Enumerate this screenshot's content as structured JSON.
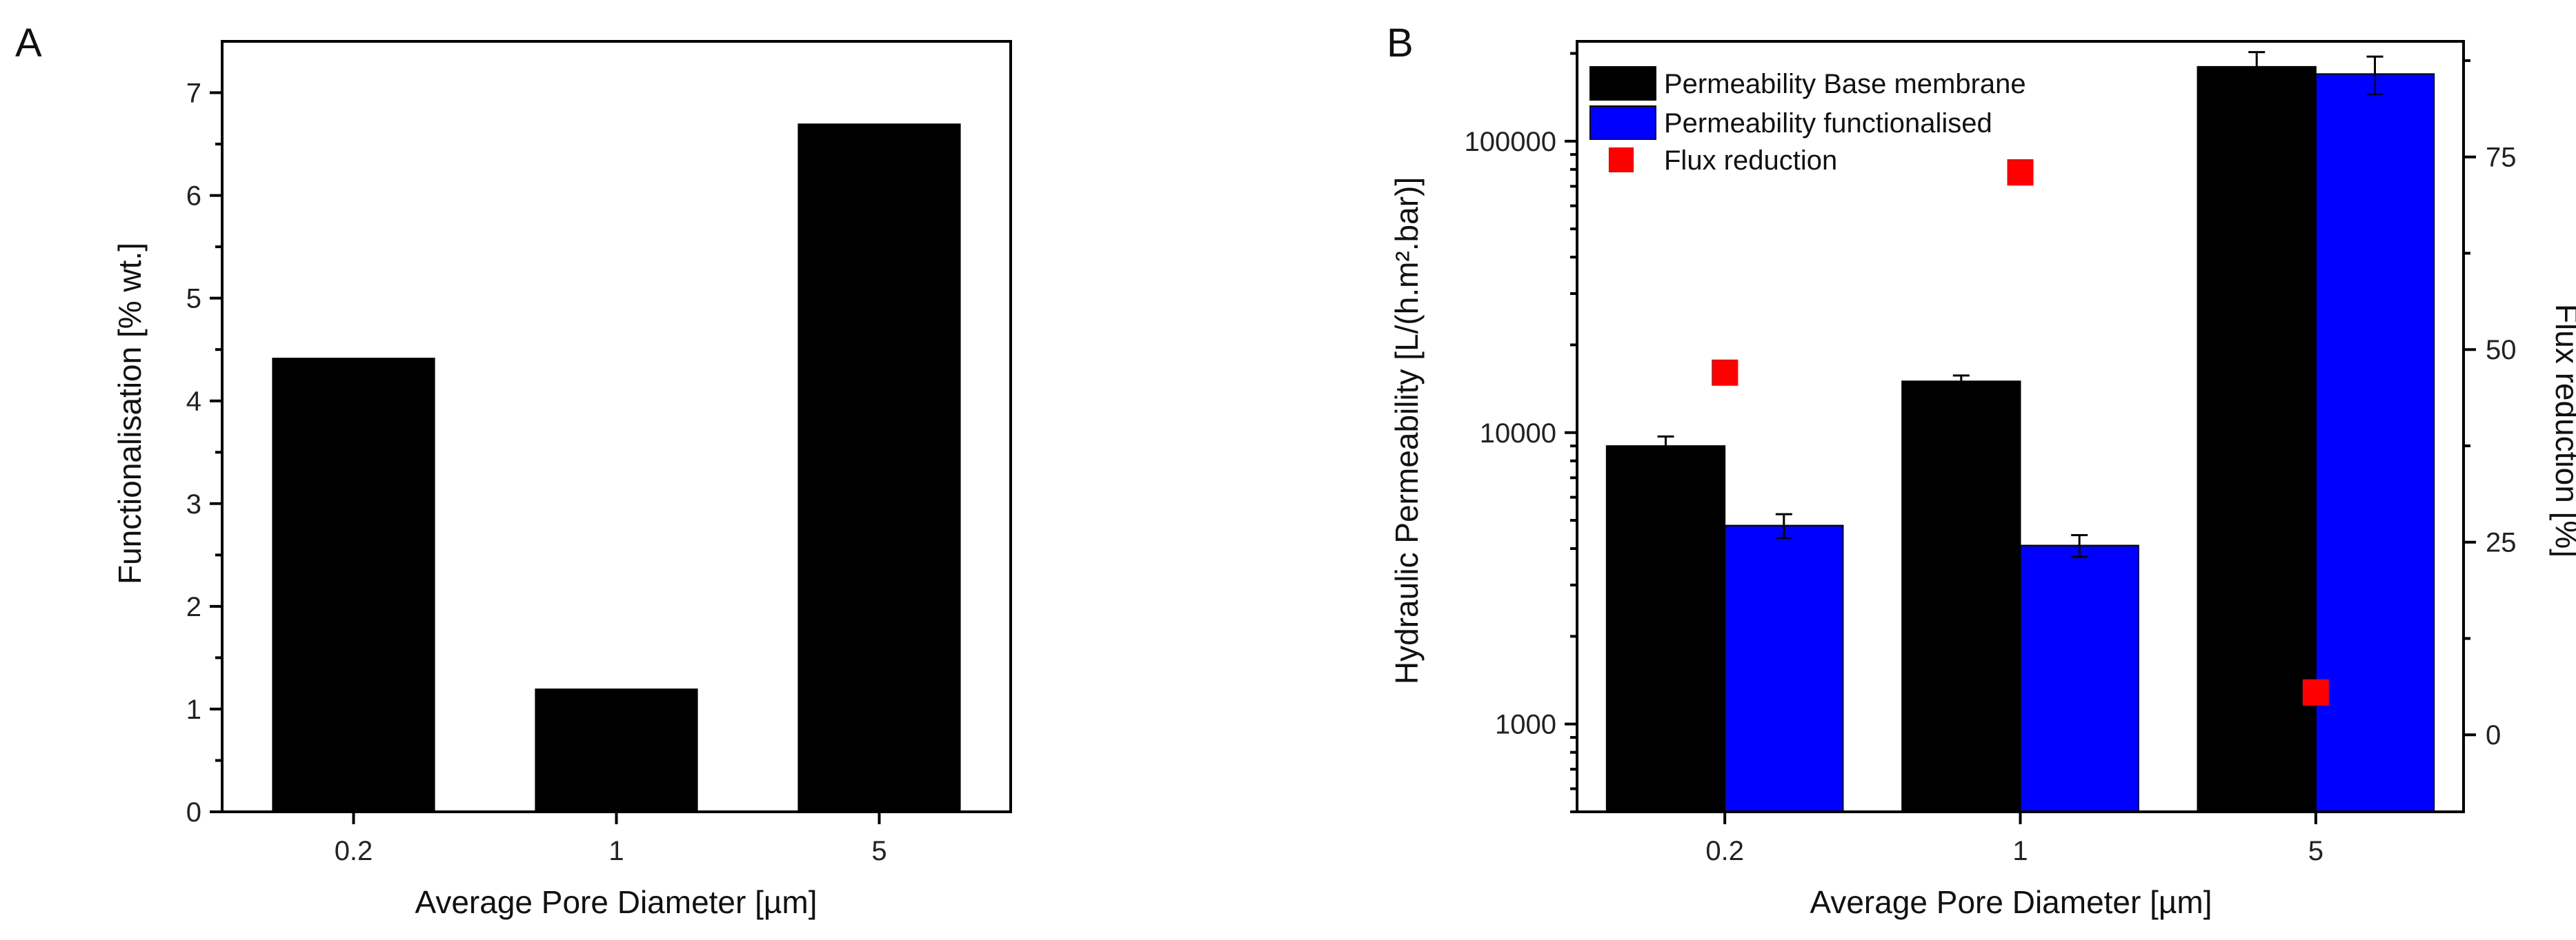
{
  "chart_data": [
    {
      "panel": "A",
      "type": "bar",
      "categories": [
        "0.2",
        "1",
        "5"
      ],
      "values": [
        4.42,
        1.2,
        6.7
      ],
      "xlabel": "Average Pore Diameter [µm]",
      "ylabel": "Functionalisation [% wt.]",
      "ylim": [
        0,
        7.5
      ],
      "yticks": [
        "0",
        "1",
        "2",
        "3",
        "4",
        "5",
        "6",
        "7"
      ],
      "colors": {
        "bar": "#000000"
      }
    },
    {
      "panel": "B",
      "type": "bar",
      "categories": [
        "0.2",
        "1",
        "5"
      ],
      "xlabel": "Average Pore Diameter [µm]",
      "ylabel": "Hydraulic Permeability [L/(h.m².bar)]",
      "ylabel_right": "Flux reduction [%]",
      "yscale": "log",
      "ylim": [
        500,
        220000
      ],
      "yticks": [
        "1000",
        "10000",
        "100000"
      ],
      "ylim_right": [
        -10,
        90
      ],
      "yticks_right": [
        "0",
        "25",
        "50",
        "75"
      ],
      "series": [
        {
          "name": "Permeability Base membrane",
          "axis": "left",
          "kind": "bar",
          "color": "#000000",
          "values": [
            9000,
            15000,
            180000
          ],
          "errors": [
            700,
            700,
            22000
          ]
        },
        {
          "name": "Permeability functionalised",
          "axis": "left",
          "kind": "bar",
          "color": "#0000ff",
          "values": [
            4800,
            4100,
            170000
          ],
          "errors": [
            450,
            350,
            25000
          ]
        },
        {
          "name": "Flux reduction",
          "axis": "right",
          "kind": "scatter",
          "color": "#ff0000",
          "values": [
            47,
            73,
            5.5
          ]
        }
      ],
      "legend_position": "top-left"
    }
  ]
}
